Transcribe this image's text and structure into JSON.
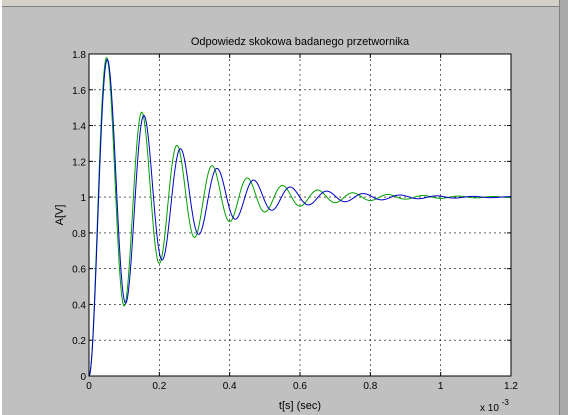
{
  "chart_data": {
    "type": "line",
    "title": "Odpowiedz skokowa badanego przetwornika",
    "xlabel": "t[s] (sec)",
    "ylabel": "A[V]",
    "x_exponent_label": "x 10",
    "x_exponent_power": "-3",
    "xlim": [
      0,
      0.0012
    ],
    "ylim": [
      0,
      1.8
    ],
    "x_ticks": [
      0,
      0.0002,
      0.0004,
      0.0006,
      0.0008,
      0.001,
      0.0012
    ],
    "x_tick_labels": [
      "0",
      "0.2",
      "0.4",
      "0.6",
      "0.8",
      "1",
      "1.2"
    ],
    "y_ticks": [
      0,
      0.2,
      0.4,
      0.6,
      0.8,
      1,
      1.2,
      1.4,
      1.6,
      1.8
    ],
    "y_tick_labels": [
      "0",
      "0.2",
      "0.4",
      "0.6",
      "0.8",
      "1",
      "1.2",
      "1.4",
      "1.6",
      "1.8"
    ],
    "grid": true,
    "series": [
      {
        "color": "#00a000",
        "model": "step_underdamped",
        "final_value": 1,
        "first_peak_time": 5e-05,
        "first_peak_value": 1.78,
        "first_trough_time": 0.0001,
        "first_trough_value": 0.4,
        "second_peak_time": 0.00015,
        "second_peak_value": 1.48,
        "period": 9.25e-05,
        "x": [
          0,
          5e-05,
          0.0001,
          0.00015,
          0.0002,
          0.00024,
          0.00029,
          0.00033,
          0.00038,
          0.00043,
          0.00047,
          0.00052,
          0.00057,
          0.00061,
          0.00066,
          0.00071,
          0.00075,
          0.0008,
          0.00085,
          0.0009,
          0.001,
          0.0011,
          0.0012
        ],
        "y": [
          0,
          1.78,
          0.4,
          1.48,
          0.63,
          1.3,
          0.75,
          1.18,
          0.86,
          1.1,
          0.93,
          1.06,
          0.96,
          1.04,
          0.975,
          1.02,
          0.985,
          1.01,
          0.99,
          1.005,
          1.0,
          1.0,
          1.0
        ]
      },
      {
        "color": "#0000c8",
        "model": "step_underdamped",
        "final_value": 1,
        "first_peak_time": 5.2e-05,
        "first_peak_value": 1.77,
        "first_trough_time": 0.000105,
        "first_trough_value": 0.39,
        "second_peak_time": 0.000158,
        "second_peak_value": 1.47,
        "period": 0.000106,
        "x": [
          0,
          5.2e-05,
          0.000105,
          0.000158,
          0.00021,
          0.00026,
          0.00031,
          0.00037,
          0.00042,
          0.00047,
          0.00052,
          0.00058,
          0.00063,
          0.00068,
          0.00073,
          0.00079,
          0.00084,
          0.0009,
          0.001,
          0.0011,
          0.0012
        ],
        "y": [
          0,
          1.77,
          0.39,
          1.47,
          0.62,
          1.3,
          0.76,
          1.17,
          0.87,
          1.1,
          0.93,
          1.06,
          0.96,
          1.04,
          0.975,
          1.02,
          0.985,
          1.01,
          1.0,
          1.0,
          1.0
        ]
      }
    ]
  }
}
